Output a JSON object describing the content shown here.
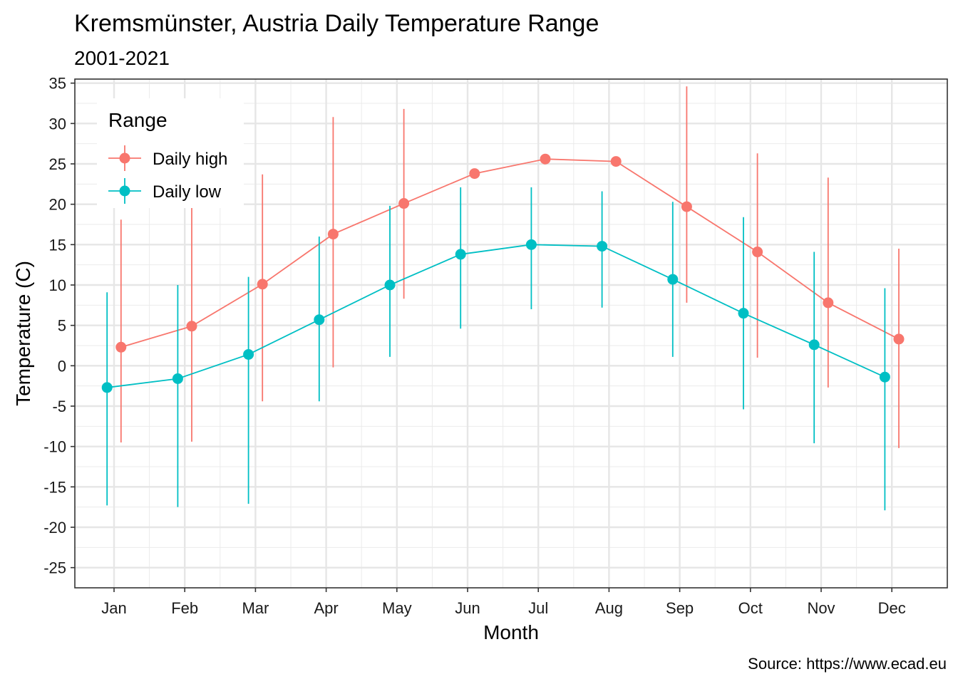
{
  "chart_data": {
    "type": "line",
    "title": "Kremsmünster, Austria Daily Temperature Range",
    "subtitle": "2001-2021",
    "xlabel": "Month",
    "ylabel": "Temperature (C)",
    "caption": "Source: https://www.ecad.eu",
    "categories": [
      "Jan",
      "Feb",
      "Mar",
      "Apr",
      "May",
      "Jun",
      "Jul",
      "Aug",
      "Sep",
      "Oct",
      "Nov",
      "Dec"
    ],
    "ylim": [
      -27.5,
      35.5
    ],
    "yticks": [
      -25,
      -20,
      -15,
      -10,
      -5,
      0,
      5,
      10,
      15,
      20,
      25,
      30,
      35
    ],
    "grid": true,
    "legend": {
      "title": "Range",
      "placement": "top-left"
    },
    "series": [
      {
        "name": "Daily high",
        "color": "#F8766D",
        "values": [
          2.3,
          4.9,
          10.1,
          16.3,
          20.1,
          23.8,
          25.6,
          25.3,
          19.7,
          14.1,
          7.8,
          3.3
        ],
        "min": [
          -9.5,
          -9.4,
          -4.4,
          -0.2,
          8.3,
          null,
          null,
          null,
          7.8,
          1.0,
          -2.7,
          -10.2
        ],
        "max": [
          18.1,
          20.3,
          23.7,
          30.8,
          31.8,
          null,
          null,
          null,
          34.6,
          26.3,
          23.3,
          14.5
        ]
      },
      {
        "name": "Daily low",
        "color": "#00BFC4",
        "values": [
          -2.7,
          -1.6,
          1.4,
          5.7,
          10.0,
          13.8,
          15.0,
          14.8,
          10.7,
          6.5,
          2.6,
          -1.4
        ],
        "min": [
          -17.3,
          -17.5,
          -17.1,
          -4.4,
          1.1,
          4.6,
          7.0,
          7.2,
          1.1,
          -5.4,
          -9.6,
          -17.9
        ],
        "max": [
          9.1,
          10.0,
          11.0,
          16.0,
          19.8,
          22.1,
          22.1,
          21.6,
          20.3,
          18.4,
          14.1,
          9.6
        ]
      }
    ]
  }
}
